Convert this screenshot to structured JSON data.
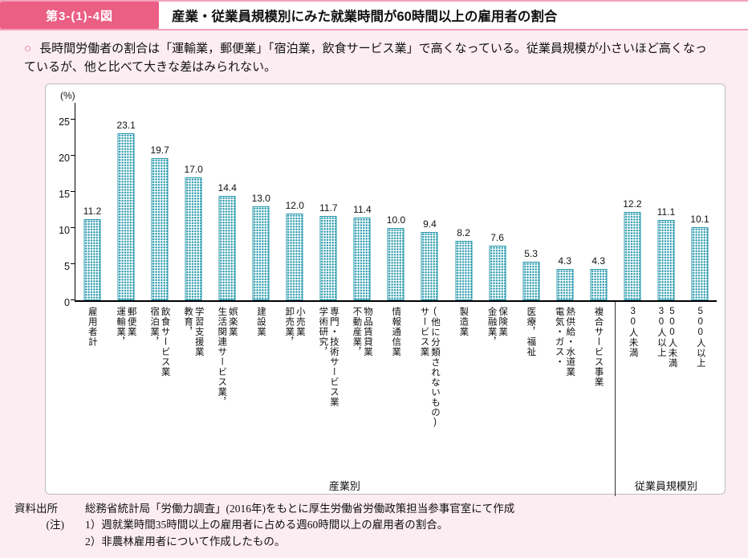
{
  "header": {
    "figure_label": "第3-(1)-4図",
    "title": "産業・従業員規模別にみた就業時間が60時間以上の雇用者の割合"
  },
  "summary": {
    "bullet": "○",
    "text": "長時間労働者の割合は「運輸業，郵便業」「宿泊業，飲食サービス業」で高くなっている。従業員規模が小さいほど高くなっているが、他と比べて大きな差はみられない。"
  },
  "chart_data": {
    "type": "bar",
    "unit_label": "(%)",
    "ylim": [
      0,
      25
    ],
    "yticks": [
      0,
      5,
      10,
      15,
      20,
      25
    ],
    "grid": false,
    "legend": "none",
    "bar_color": "#2798ad",
    "groups": [
      {
        "label": "産業別",
        "categories": [
          "雇用者計",
          "運輸業，\n郵便業",
          "宿泊業，\n飲食サービス業",
          "教育，\n学習支援業",
          "生活関連サービス業，\n娯楽業",
          "建設業",
          "卸売業，\n小売業",
          "学術研究，\n専門・技術サービス業",
          "不動産業，\n物品賃貸業",
          "情報通信業",
          "サービス業\n(他に分類されないもの)",
          "製造業",
          "金融業，\n保険業",
          "医療，福祉",
          "電気・ガス・\n熱供給・水道業",
          "複合サービス事業"
        ],
        "values": [
          "11.2",
          "23.1",
          "19.7",
          "17.0",
          "14.4",
          "13.0",
          "12.0",
          "11.7",
          "11.4",
          "10.0",
          "9.4",
          "8.2",
          "7.6",
          "5.3",
          "4.3",
          "4.3"
        ]
      },
      {
        "label": "従業員規模別",
        "categories": [
          "30人未満",
          "30人以上\n500人未満",
          "500人以上"
        ],
        "values": [
          "12.2",
          "11.1",
          "10.1"
        ]
      }
    ]
  },
  "footer": {
    "source_label": "資料出所",
    "source_text": "総務省統計局「労働力調査」(2016年)をもとに厚生労働省労働政策担当参事官室にて作成",
    "note_label": "(注)",
    "notes": [
      "1）週就業時間35時間以上の雇用者に占める週60時間以上の雇用者の割合。",
      "2）非農林雇用者について作成したもの。"
    ]
  }
}
